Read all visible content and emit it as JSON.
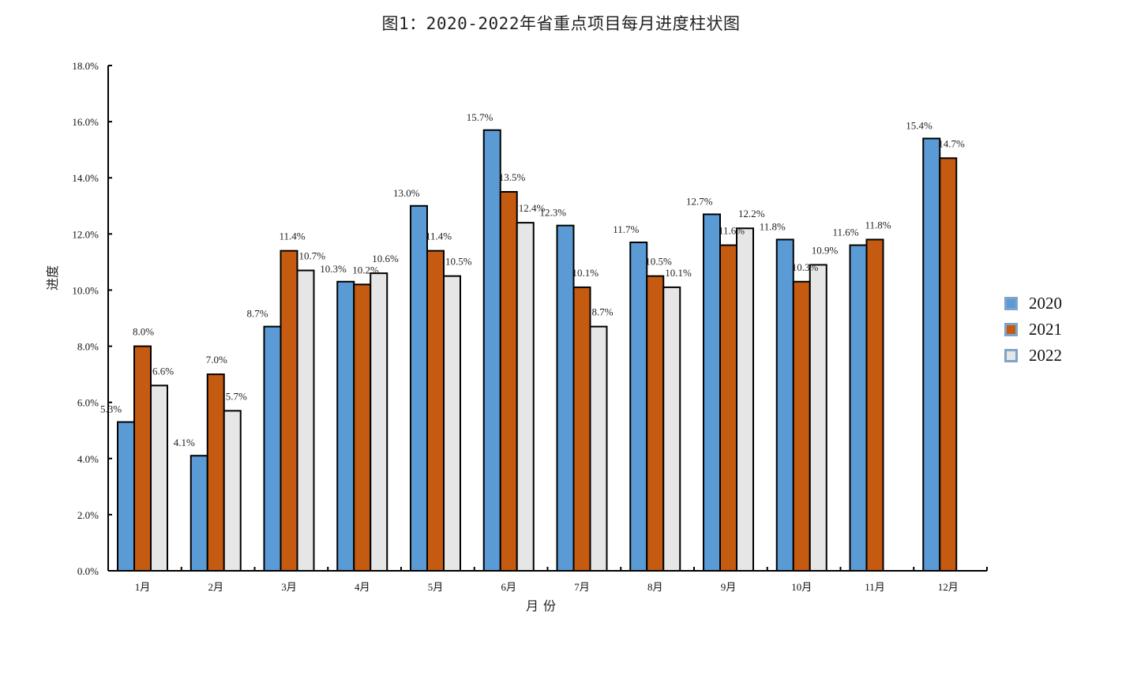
{
  "title": "图1：2020-2022年省重点项目每月进度柱状图",
  "colors": {
    "2020": "#5b9bd5",
    "2021": "#c55a11",
    "2022": "#e6e6e6",
    "bar_stroke": "#000000",
    "legend_border": "#7fa3c9"
  },
  "legend": {
    "items": [
      {
        "label": "2020"
      },
      {
        "label": "2021"
      },
      {
        "label": "2022"
      }
    ]
  },
  "axes": {
    "xlabel": "月份",
    "ylabel": "进度"
  },
  "chart_data": {
    "type": "bar",
    "title": "图1：2020-2022年省重点项目每月进度柱状图",
    "xlabel": "月份",
    "ylabel": "进度",
    "categories": [
      "1月",
      "2月",
      "3月",
      "4月",
      "5月",
      "6月",
      "7月",
      "8月",
      "9月",
      "10月",
      "11月",
      "12月"
    ],
    "series": [
      {
        "name": "2020",
        "values": [
          5.3,
          4.1,
          8.7,
          10.3,
          13.0,
          15.7,
          12.3,
          11.7,
          12.7,
          11.8,
          11.6,
          15.4
        ]
      },
      {
        "name": "2021",
        "values": [
          8.0,
          7.0,
          11.4,
          10.2,
          11.4,
          13.5,
          10.1,
          10.5,
          11.6,
          10.3,
          11.8,
          14.7
        ]
      },
      {
        "name": "2022",
        "values": [
          6.6,
          5.7,
          10.7,
          10.6,
          10.5,
          12.4,
          8.7,
          10.1,
          12.2,
          10.9,
          null,
          null
        ]
      }
    ],
    "yticks": [
      "0.0%",
      "2.0%",
      "4.0%",
      "6.0%",
      "8.0%",
      "10.0%",
      "12.0%",
      "14.0%",
      "16.0%",
      "18.0%"
    ],
    "ylim": [
      0,
      18
    ],
    "value_format": "percent_1dp",
    "grid": false,
    "legend_position": "right"
  }
}
